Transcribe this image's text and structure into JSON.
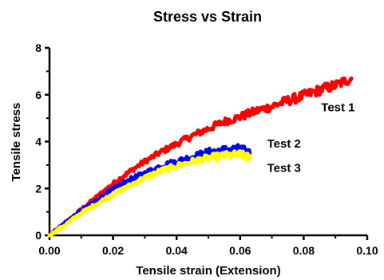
{
  "chart_data": {
    "type": "line",
    "title": "Stress vs Strain",
    "xlabel": "Tensile strain (Extension)",
    "ylabel": "Tensile stress",
    "xlim": [
      0,
      0.1
    ],
    "ylim": [
      0,
      8
    ],
    "x_ticks": [
      "0.00",
      "0.02",
      "0.04",
      "0.06",
      "0.08",
      "0.10"
    ],
    "y_ticks": [
      "0",
      "2",
      "4",
      "6",
      "8"
    ],
    "grid": false,
    "legend": "inline labels at series ends",
    "series": [
      {
        "name": "Test 1",
        "color": "#ff0000",
        "x": [
          0.0,
          0.005,
          0.01,
          0.015,
          0.02,
          0.025,
          0.03,
          0.035,
          0.04,
          0.045,
          0.05,
          0.055,
          0.06,
          0.065,
          0.07,
          0.075,
          0.08,
          0.085,
          0.09,
          0.095
        ],
        "y": [
          0.0,
          0.5,
          1.1,
          1.65,
          2.2,
          2.7,
          3.15,
          3.55,
          3.9,
          4.25,
          4.55,
          4.85,
          5.05,
          5.3,
          5.5,
          5.75,
          5.95,
          6.2,
          6.4,
          6.7
        ]
      },
      {
        "name": "Test  2",
        "color": "#0000ff",
        "x": [
          0.0,
          0.005,
          0.01,
          0.015,
          0.02,
          0.025,
          0.03,
          0.035,
          0.04,
          0.045,
          0.05,
          0.055,
          0.06,
          0.063
        ],
        "y": [
          0.0,
          0.55,
          1.05,
          1.5,
          1.95,
          2.35,
          2.65,
          2.95,
          3.15,
          3.35,
          3.55,
          3.65,
          3.7,
          3.5
        ]
      },
      {
        "name": "Test  3",
        "color": "#ffff00",
        "x": [
          0.0,
          0.005,
          0.01,
          0.015,
          0.02,
          0.025,
          0.03,
          0.035,
          0.04,
          0.045,
          0.05,
          0.055,
          0.06,
          0.063
        ],
        "y": [
          0.0,
          0.45,
          0.95,
          1.35,
          1.75,
          2.1,
          2.45,
          2.75,
          2.95,
          3.15,
          3.3,
          3.4,
          3.45,
          3.3
        ]
      }
    ]
  }
}
